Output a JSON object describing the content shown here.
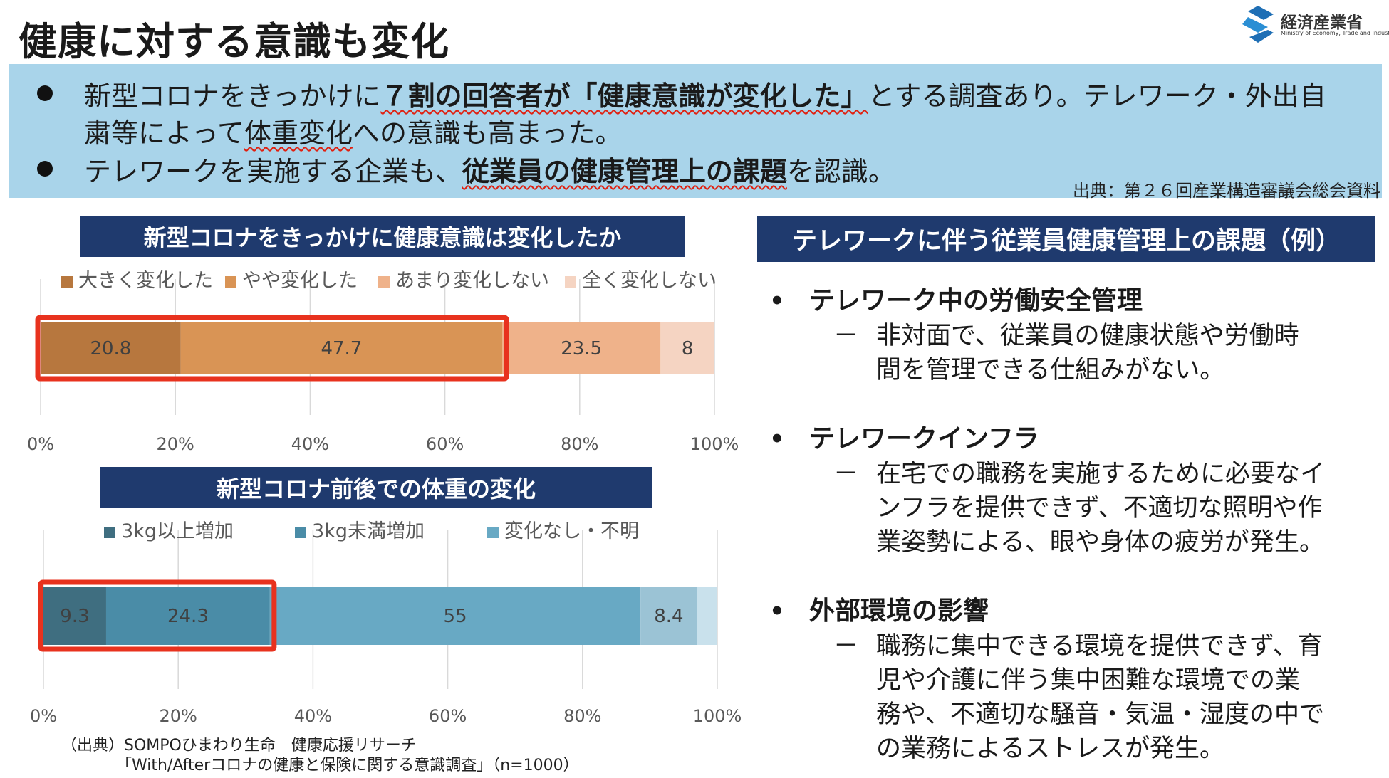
{
  "page_title": "健康に対する意識も変化",
  "logo": {
    "name": "経済産業省",
    "subtitle": "Ministry of Economy, Trade and Industry"
  },
  "summary": {
    "line1_a": "新型コロナをきっかけに",
    "line1_b": "７割の回答者が「健康意識が変化した」",
    "line1_c": "とする調査あり。テレワーク・外出自",
    "line2_a": "粛等によって",
    "line2_b": "体重変化",
    "line2_c": "への意識も高まった。",
    "line3_a": "テレワークを実施する企業も、",
    "line3_b": "従業員の健康管理上の課題",
    "line3_c": "を認識。",
    "source": "出典：第２６回産業構造審議会総会資料"
  },
  "chart_data": [
    {
      "type": "bar",
      "orientation": "horizontal-stacked-100",
      "title": "新型コロナをきっかけに健康意識は変化したか",
      "series": [
        {
          "name": "大きく変化した",
          "values": [
            20.8
          ],
          "color": "#b7773e"
        },
        {
          "name": "やや変化した",
          "values": [
            47.7
          ],
          "color": "#d99455"
        },
        {
          "name": "あまり変化しない",
          "values": [
            23.5
          ],
          "color": "#efb28a"
        },
        {
          "name": "全く変化しない",
          "values": [
            8
          ],
          "color": "#f5d4c2"
        }
      ],
      "xlim": [
        0,
        100
      ],
      "xticks": [
        "0%",
        "20%",
        "40%",
        "60%",
        "80%",
        "100%"
      ],
      "legend": "top",
      "grid": true,
      "highlight_series": [
        0,
        1
      ]
    },
    {
      "type": "bar",
      "orientation": "horizontal-stacked-100",
      "title": "新型コロナ前後での体重の変化",
      "series": [
        {
          "name": "3kg以上増加",
          "values": [
            9.3
          ],
          "color": "#3f6e80"
        },
        {
          "name": "3kg未満増加",
          "values": [
            24.3
          ],
          "color": "#4a8ca7"
        },
        {
          "name": "変化なし・不明",
          "values": [
            55
          ],
          "color": "#68a9c4"
        },
        {
          "name": "",
          "values": [
            8.4
          ],
          "color": "#9bc3d5"
        },
        {
          "name": "",
          "values": [
            3
          ],
          "color": "#c9e1ec"
        }
      ],
      "xlim": [
        0,
        100
      ],
      "xticks": [
        "0%",
        "20%",
        "40%",
        "60%",
        "80%",
        "100%"
      ],
      "legend": "top",
      "grid": true,
      "highlight_series": [
        0,
        1
      ]
    }
  ],
  "right_panel": {
    "title": "テレワークに伴う従業員健康管理上の課題（例）",
    "points": [
      {
        "heading": "テレワーク中の労働安全管理",
        "body": [
          "非対面で、従業員の健康状態や労働時",
          "間を管理できる仕組みがない。"
        ]
      },
      {
        "heading": "テレワークインフラ",
        "body": [
          "在宅での職務を実施するために必要なイ",
          "ンフラを提供できず、不適切な照明や作",
          "業姿勢による、眼や身体の疲労が発生。"
        ]
      },
      {
        "heading": "外部環境の影響",
        "body": [
          "職務に集中できる環境を提供できず、育",
          "児や介護に伴う集中困難な環境での業",
          "務や、不適切な騒音・気温・湿度の中で",
          "の業務によるストレスが発生。"
        ]
      }
    ],
    "dash": "－"
  },
  "footnote": {
    "line1": "（出典）SOMPOひまわり生命　健康応援リサーチ",
    "line2": "　　　　「With/Afterコロナの健康と保険に関する意識調査」（n=1000）"
  }
}
